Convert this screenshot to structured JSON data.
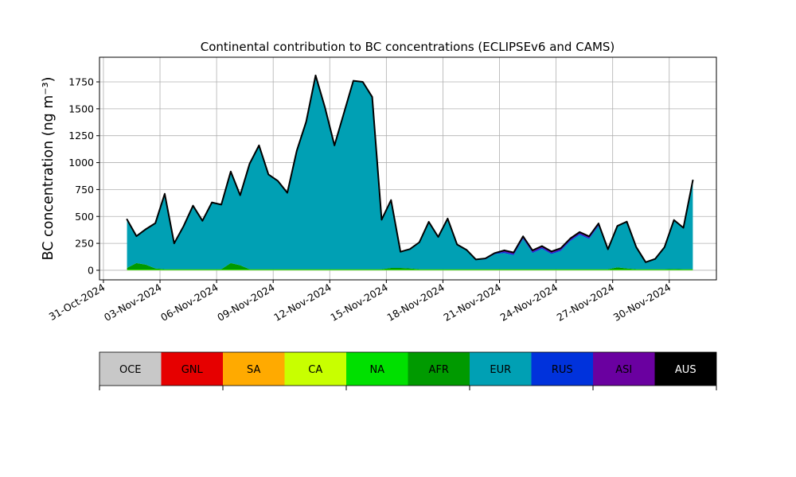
{
  "chart_data": {
    "type": "area",
    "stacked": true,
    "title": "Continental contribution to BC concentrations (ECLIPSEv6 and CAMS)",
    "ylabel": "BC concentration (ng m⁻³)",
    "x": [
      "2024-11-01T06:00",
      "2024-11-01T18:00",
      "2024-11-02T06:00",
      "2024-11-02T18:00",
      "2024-11-03T06:00",
      "2024-11-03T18:00",
      "2024-11-04T06:00",
      "2024-11-04T18:00",
      "2024-11-05T06:00",
      "2024-11-05T18:00",
      "2024-11-06T06:00",
      "2024-11-06T18:00",
      "2024-11-07T06:00",
      "2024-11-07T18:00",
      "2024-11-08T06:00",
      "2024-11-08T18:00",
      "2024-11-09T06:00",
      "2024-11-09T18:00",
      "2024-11-10T06:00",
      "2024-11-10T18:00",
      "2024-11-11T06:00",
      "2024-11-11T18:00",
      "2024-11-12T06:00",
      "2024-11-12T18:00",
      "2024-11-13T06:00",
      "2024-11-13T18:00",
      "2024-11-14T06:00",
      "2024-11-14T18:00",
      "2024-11-15T06:00",
      "2024-11-15T18:00",
      "2024-11-16T06:00",
      "2024-11-16T18:00",
      "2024-11-17T06:00",
      "2024-11-17T18:00",
      "2024-11-18T06:00",
      "2024-11-18T18:00",
      "2024-11-19T06:00",
      "2024-11-19T18:00",
      "2024-11-20T06:00",
      "2024-11-20T18:00",
      "2024-11-21T06:00",
      "2024-11-21T18:00",
      "2024-11-22T06:00",
      "2024-11-22T18:00",
      "2024-11-23T06:00",
      "2024-11-23T18:00",
      "2024-11-24T06:00",
      "2024-11-24T18:00",
      "2024-11-25T06:00",
      "2024-11-25T18:00",
      "2024-11-26T06:00",
      "2024-11-26T18:00",
      "2024-11-27T06:00",
      "2024-11-27T18:00",
      "2024-11-28T06:00",
      "2024-11-28T18:00",
      "2024-11-29T06:00",
      "2024-11-29T18:00",
      "2024-11-30T06:00",
      "2024-11-30T18:00",
      "2024-12-01T06:00"
    ],
    "series": [
      {
        "name": "OCE",
        "color": "#c8c8c8",
        "values": [
          0,
          0,
          0,
          0,
          0,
          0,
          0,
          0,
          0,
          0,
          0,
          0,
          0,
          0,
          0,
          0,
          0,
          0,
          0,
          0,
          0,
          0,
          0,
          0,
          0,
          0,
          0,
          0,
          0,
          0,
          0,
          0,
          0,
          0,
          0,
          0,
          0,
          0,
          0,
          0,
          0,
          0,
          0,
          0,
          0,
          0,
          0,
          0,
          0,
          0,
          0,
          0,
          0,
          0,
          0,
          0,
          0,
          0,
          0,
          0,
          0
        ]
      },
      {
        "name": "GNL",
        "color": "#e60000",
        "values": [
          0,
          0,
          0,
          0,
          0,
          0,
          0,
          0,
          0,
          0,
          0,
          0,
          0,
          0,
          0,
          0,
          0,
          0,
          0,
          0,
          0,
          0,
          0,
          0,
          0,
          0,
          0,
          0,
          0,
          0,
          0,
          0,
          0,
          0,
          0,
          0,
          0,
          0,
          0,
          0,
          0,
          0,
          0,
          0,
          0,
          0,
          0,
          0,
          0,
          0,
          0,
          0,
          0,
          0,
          0,
          0,
          0,
          0,
          0,
          0,
          0
        ]
      },
      {
        "name": "SA",
        "color": "#ffaa00",
        "values": [
          0,
          0,
          0,
          0,
          0,
          0,
          0,
          0,
          0,
          0,
          0,
          0,
          0,
          0,
          0,
          0,
          0,
          0,
          0,
          0,
          0,
          0,
          0,
          0,
          0,
          0,
          0,
          0,
          0,
          0,
          0,
          0,
          0,
          0,
          0,
          0,
          0,
          0,
          0,
          0,
          0,
          0,
          0,
          0,
          0,
          0,
          0,
          0,
          0,
          0,
          0,
          0,
          0,
          0,
          0,
          0,
          0,
          0,
          0,
          0,
          0
        ]
      },
      {
        "name": "CA",
        "color": "#c8ff00",
        "values": [
          2,
          2,
          2,
          2,
          2,
          2,
          2,
          2,
          2,
          2,
          2,
          2,
          2,
          2,
          2,
          2,
          2,
          2,
          2,
          2,
          2,
          2,
          2,
          2,
          2,
          2,
          2,
          2,
          2,
          2,
          2,
          2,
          2,
          2,
          2,
          2,
          2,
          2,
          2,
          2,
          2,
          2,
          2,
          2,
          2,
          2,
          2,
          2,
          2,
          2,
          2,
          2,
          2,
          2,
          2,
          2,
          2,
          2,
          2,
          2,
          2
        ]
      },
      {
        "name": "NA",
        "color": "#00e000",
        "values": [
          5,
          5,
          5,
          5,
          5,
          5,
          5,
          5,
          5,
          5,
          5,
          5,
          5,
          5,
          5,
          5,
          5,
          5,
          5,
          5,
          5,
          5,
          5,
          5,
          5,
          5,
          5,
          5,
          5,
          5,
          5,
          5,
          5,
          5,
          5,
          5,
          5,
          5,
          5,
          5,
          5,
          5,
          5,
          5,
          5,
          5,
          5,
          5,
          5,
          5,
          5,
          5,
          5,
          5,
          5,
          5,
          5,
          5,
          5,
          5,
          5
        ]
      },
      {
        "name": "AFR",
        "color": "#009a00",
        "values": [
          15,
          60,
          45,
          10,
          3,
          3,
          3,
          3,
          3,
          3,
          3,
          60,
          40,
          3,
          3,
          3,
          3,
          3,
          3,
          3,
          3,
          3,
          3,
          3,
          3,
          3,
          3,
          3,
          15,
          15,
          10,
          3,
          3,
          3,
          3,
          3,
          3,
          3,
          3,
          3,
          3,
          3,
          3,
          3,
          3,
          3,
          3,
          3,
          3,
          3,
          3,
          3,
          20,
          10,
          3,
          3,
          3,
          3,
          5,
          3,
          3
        ]
      },
      {
        "name": "EUR",
        "color": "#00a0b4",
        "values": [
          450,
          250,
          330,
          420,
          700,
          240,
          400,
          590,
          450,
          620,
          600,
          850,
          650,
          980,
          1150,
          880,
          820,
          710,
          1100,
          1370,
          1800,
          1500,
          1150,
          1450,
          1750,
          1740,
          1600,
          460,
          630,
          150,
          180,
          250,
          440,
          300,
          470,
          230,
          180,
          90,
          90,
          140,
          150,
          130,
          280,
          150,
          190,
          140,
          170,
          260,
          320,
          280,
          400,
          180,
          380,
          430,
          200,
          60,
          90,
          200,
          450,
          380,
          820
        ]
      },
      {
        "name": "RUS",
        "color": "#0032dc",
        "values": [
          0,
          0,
          0,
          0,
          0,
          0,
          0,
          0,
          0,
          0,
          0,
          0,
          0,
          0,
          0,
          0,
          0,
          0,
          0,
          0,
          0,
          0,
          0,
          0,
          0,
          0,
          0,
          0,
          0,
          0,
          0,
          0,
          0,
          0,
          0,
          0,
          0,
          0,
          10,
          10,
          10,
          10,
          10,
          10,
          10,
          10,
          10,
          10,
          10,
          10,
          10,
          0,
          0,
          0,
          0,
          0,
          0,
          0,
          0,
          0,
          0
        ]
      },
      {
        "name": "ASI",
        "color": "#6a00a0",
        "values": [
          0,
          0,
          0,
          0,
          0,
          0,
          0,
          0,
          0,
          0,
          0,
          0,
          0,
          0,
          0,
          0,
          0,
          0,
          0,
          0,
          0,
          0,
          0,
          0,
          0,
          0,
          0,
          0,
          0,
          0,
          0,
          0,
          0,
          0,
          0,
          0,
          0,
          0,
          0,
          0,
          15,
          15,
          15,
          15,
          15,
          15,
          15,
          15,
          15,
          15,
          15,
          5,
          5,
          5,
          5,
          5,
          5,
          5,
          5,
          5,
          5
        ]
      },
      {
        "name": "AUS",
        "color": "#000000",
        "values": [
          0,
          0,
          0,
          0,
          0,
          0,
          0,
          0,
          0,
          0,
          0,
          0,
          0,
          0,
          0,
          0,
          0,
          0,
          0,
          0,
          0,
          0,
          0,
          0,
          0,
          0,
          0,
          0,
          0,
          0,
          0,
          0,
          0,
          0,
          0,
          0,
          0,
          0,
          0,
          0,
          0,
          0,
          0,
          0,
          0,
          0,
          0,
          0,
          0,
          0,
          0,
          0,
          0,
          0,
          0,
          0,
          0,
          0,
          0,
          0,
          0
        ]
      }
    ],
    "xlim": [
      "2024-10-30T19:00",
      "2024-12-02T12:00"
    ],
    "xticks": [
      {
        "value": "2024-10-31T00:00",
        "label": "31-Oct-2024"
      },
      {
        "value": "2024-11-03T00:00",
        "label": "03-Nov-2024"
      },
      {
        "value": "2024-11-06T00:00",
        "label": "06-Nov-2024"
      },
      {
        "value": "2024-11-09T00:00",
        "label": "09-Nov-2024"
      },
      {
        "value": "2024-11-12T00:00",
        "label": "12-Nov-2024"
      },
      {
        "value": "2024-11-15T00:00",
        "label": "15-Nov-2024"
      },
      {
        "value": "2024-11-18T00:00",
        "label": "18-Nov-2024"
      },
      {
        "value": "2024-11-21T00:00",
        "label": "21-Nov-2024"
      },
      {
        "value": "2024-11-24T00:00",
        "label": "24-Nov-2024"
      },
      {
        "value": "2024-11-27T00:00",
        "label": "27-Nov-2024"
      },
      {
        "value": "2024-11-30T00:00",
        "label": "30-Nov-2024"
      }
    ],
    "ylim": [
      -89,
      1979
    ],
    "yticks": [
      0,
      250,
      500,
      750,
      1000,
      1250,
      1500,
      1750
    ],
    "grid": true
  }
}
